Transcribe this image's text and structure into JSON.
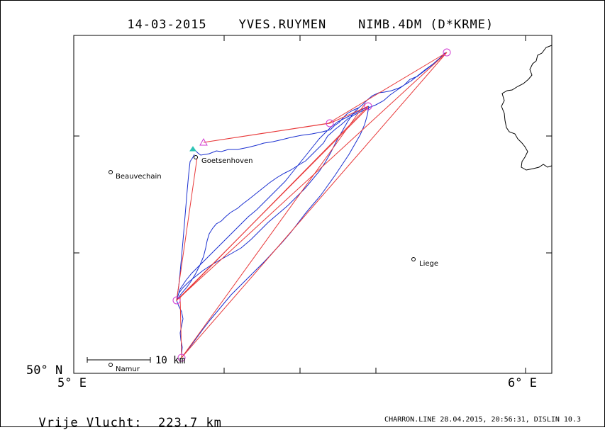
{
  "header": {
    "date": "14-03-2015",
    "pilot": "YVES.RUYMEN",
    "glider": "NIMB.4DM (D*KRME)"
  },
  "axes": {
    "lat_label": "50° N",
    "lon_labels": [
      "5° E",
      "6° E"
    ]
  },
  "places": [
    {
      "name": "Goetsenhoven"
    },
    {
      "name": "Beauvechain"
    },
    {
      "name": "Liege"
    },
    {
      "name": "Namur"
    }
  ],
  "scale": {
    "label": "10 km"
  },
  "stats": {
    "label": "Vrije Vlucht:",
    "distance": "223.7 km"
  },
  "footer": {
    "text": "CHARRON.LINE 28.04.2015, 20:56:31, DISLIN 10.3"
  },
  "colors": {
    "task": "#e8393a",
    "track": "#1a2fd0",
    "turnpoint": "#d23ad2",
    "start": "#2ec4b6",
    "border": "#000000"
  }
}
